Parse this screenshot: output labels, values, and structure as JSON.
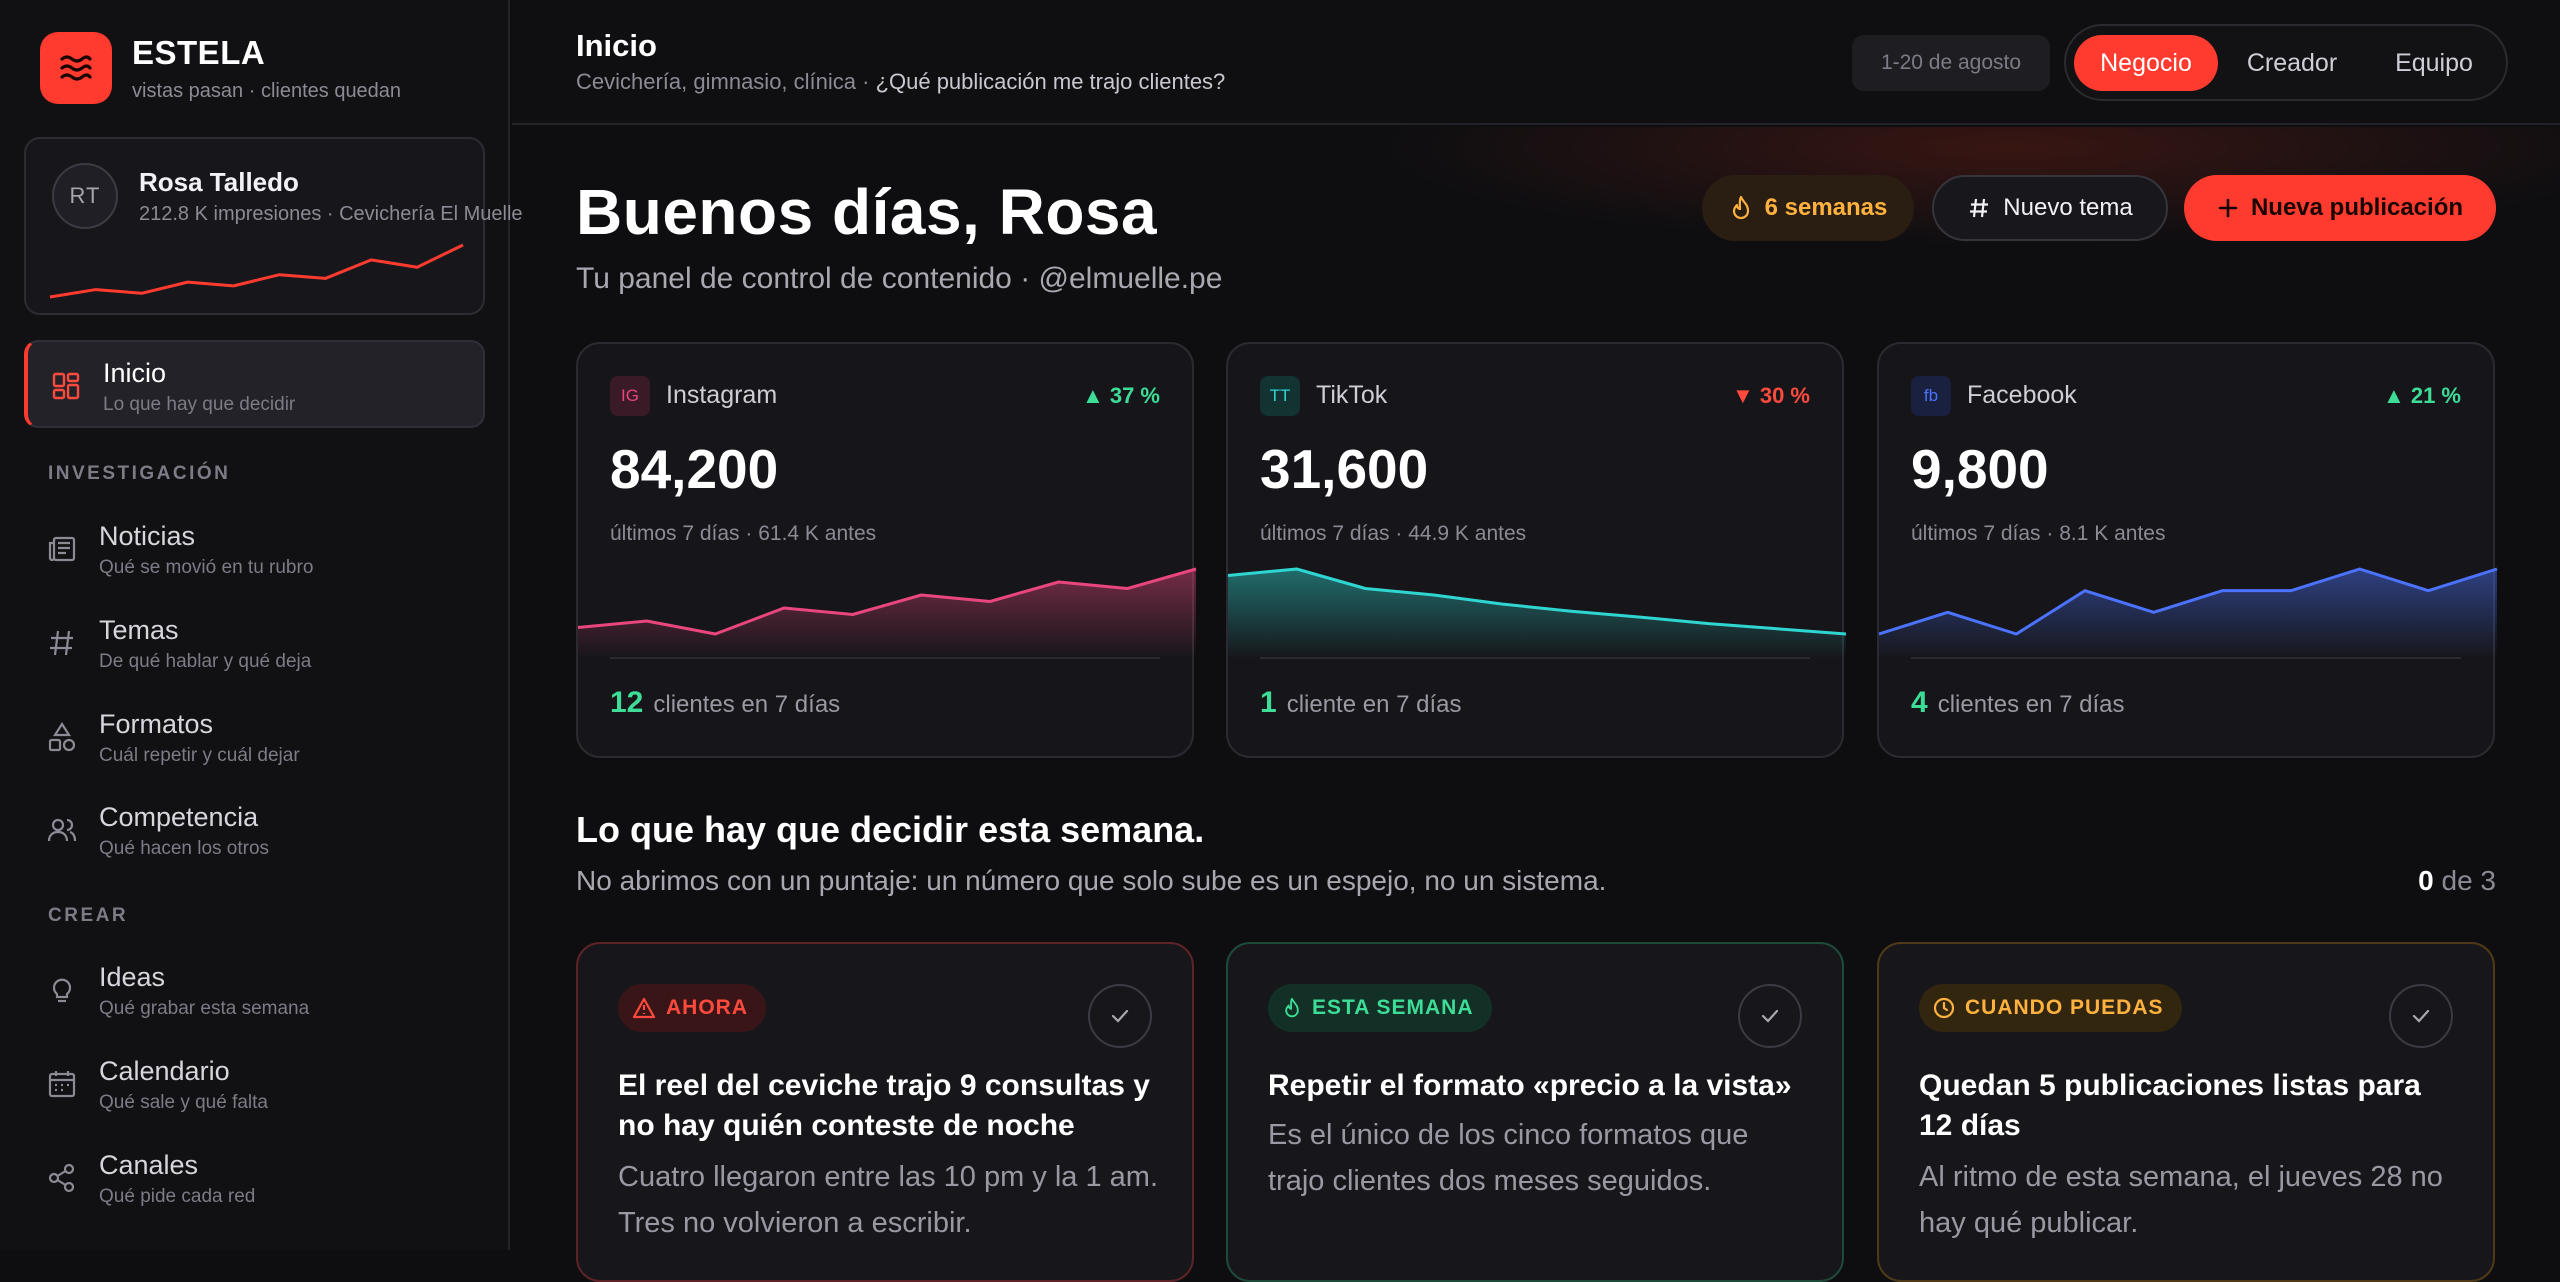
{
  "brand": {
    "name": "ESTELA",
    "tagline": "vistas pasan · clientes quedan"
  },
  "profile": {
    "initials": "RT",
    "name": "Rosa Talledo",
    "subtitle": "212.8 K impresiones · Cevichería El Muelle"
  },
  "nav": {
    "sections": {
      "investigacion": "INVESTIGACIÓN",
      "crear": "CREAR"
    },
    "items": [
      {
        "label": "Inicio",
        "sub": "Lo que hay que decidir",
        "icon": "dashboard-icon",
        "active": true
      },
      {
        "label": "Noticias",
        "sub": "Qué se movió en tu rubro",
        "icon": "newspaper-icon"
      },
      {
        "label": "Temas",
        "sub": "De qué hablar y qué deja",
        "icon": "hash-icon"
      },
      {
        "label": "Formatos",
        "sub": "Cuál repetir y cuál dejar",
        "icon": "shapes-icon"
      },
      {
        "label": "Competencia",
        "sub": "Qué hacen los otros",
        "icon": "users-icon"
      },
      {
        "label": "Ideas",
        "sub": "Qué grabar esta semana",
        "icon": "lightbulb-icon"
      },
      {
        "label": "Calendario",
        "sub": "Qué sale y qué falta",
        "icon": "calendar-icon"
      },
      {
        "label": "Canales",
        "sub": "Qué pide cada red",
        "icon": "share-icon"
      }
    ]
  },
  "topbar": {
    "title": "Inicio",
    "subtitle": "Cevichería, gimnasio, clínica · ",
    "question": "¿Qué publicación me trajo clientes?",
    "date_range": "1-20 de agosto",
    "modes": [
      "Negocio",
      "Creador",
      "Equipo"
    ],
    "active_mode": "Negocio"
  },
  "header": {
    "greeting": "Buenos días, Rosa",
    "subtitle": "Tu panel de control de contenido · @elmuelle.pe",
    "streak": "6 semanas",
    "new_topic": "Nuevo tema",
    "new_post": "Nueva publicación"
  },
  "networks": [
    {
      "badge": "IG",
      "name": "Instagram",
      "delta": "37 %",
      "trend": "up",
      "value": "84,200",
      "note": "últimos 7 días · 61.4 K antes",
      "clients_num": "12",
      "clients_label": "clientes en 7 días",
      "color": "#e8467c",
      "series": [
        3,
        4,
        2,
        6,
        5,
        8,
        7,
        10,
        9,
        12
      ]
    },
    {
      "badge": "TT",
      "name": "TikTok",
      "delta": "30 %",
      "trend": "down",
      "value": "31,600",
      "note": "últimos 7 días · 44.9 K antes",
      "clients_num": "1",
      "clients_label": "cliente en 7 días",
      "color": "#2fd6d1",
      "series": [
        10,
        11,
        8,
        7,
        5.6,
        4.5,
        3.6,
        2.6,
        1.8,
        1
      ]
    },
    {
      "badge": "fb",
      "name": "Facebook",
      "delta": "21 %",
      "trend": "up",
      "value": "9,800",
      "note": "últimos 7 días · 8.1 K antes",
      "clients_num": "4",
      "clients_label": "clientes en 7 días",
      "color": "#4b73ff",
      "series": [
        1,
        4,
        1,
        7,
        4,
        7,
        7,
        10,
        7,
        10
      ]
    }
  ],
  "profile_trend": [
    2,
    3,
    2.5,
    4,
    3.5,
    5,
    4.5,
    7,
    6,
    9
  ],
  "decisions": {
    "title": "Lo que hay que decidir esta semana.",
    "subtitle": "No abrimos con un puntaje: un número que solo sube es un espejo, no un sistema.",
    "done": "0",
    "total_label": " de 3",
    "items": [
      {
        "tag": "AHORA",
        "tag_color": "#ff4a3d",
        "tag_bg": "#3a1517",
        "border": "#5e2326",
        "icon": "alert-icon",
        "title": "El reel del ceviche trajo 9 consultas y no hay quién conteste de noche",
        "body": "Cuatro llegaron entre las 10 pm y la 1 am. Tres no volvieron a escribir."
      },
      {
        "tag": "ESTA SEMANA",
        "tag_color": "#3ddc97",
        "tag_bg": "#123025",
        "border": "#1e4a39",
        "icon": "flame-icon",
        "title": "Repetir el formato «precio a la vista»",
        "body": "Es el único de los cinco formatos que trajo clientes dos meses seguidos."
      },
      {
        "tag": "CUANDO PUEDAS",
        "tag_color": "#ffb23e",
        "tag_bg": "#33260f",
        "border": "#4f3a17",
        "icon": "clock-icon",
        "title": "Quedan 5 publicaciones listas para 12 días",
        "body": "Al ritmo de esta semana, el jueves 28 no hay qué publicar."
      }
    ]
  }
}
